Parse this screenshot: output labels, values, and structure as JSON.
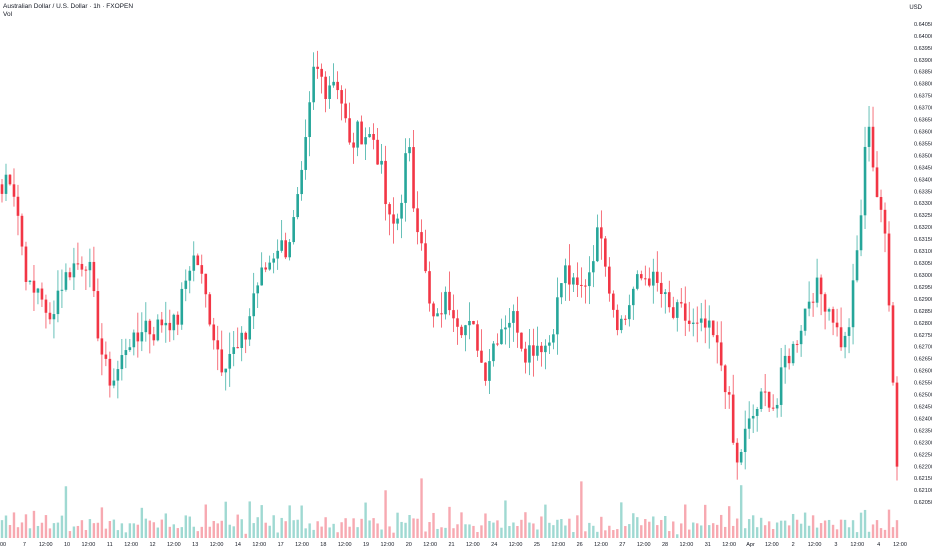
{
  "header": {
    "title": "Australian Dollar / U.S. Dollar · 1h · FXOPEN",
    "volume_label": "Vol"
  },
  "currency_label": "USD",
  "colors": {
    "up": "#26a69a",
    "down": "#f23645",
    "up_vol": "#9fd9d2",
    "down_vol": "#f7a9b1",
    "wick": "#f6b7bd",
    "axis_text": "#131722"
  },
  "chart_data": {
    "type": "candlestick",
    "title": "Australian Dollar / U.S. Dollar · 1h · FXOPEN",
    "ylabel": "USD",
    "ylim": [
      0.619,
      0.6415
    ],
    "y_ticks": [
      "0.64050",
      "0.64000",
      "0.63950",
      "0.63900",
      "0.63850",
      "0.63800",
      "0.63750",
      "0.63700",
      "0.63650",
      "0.63600",
      "0.63550",
      "0.63500",
      "0.63450",
      "0.63400",
      "0.63350",
      "0.63300",
      "0.63250",
      "0.63200",
      "0.63150",
      "0.63100",
      "0.63050",
      "0.63000",
      "0.62950",
      "0.62900",
      "0.62850",
      "0.62800",
      "0.62750",
      "0.62700",
      "0.62650",
      "0.62600",
      "0.62550",
      "0.62500",
      "0.62450",
      "0.62400",
      "0.62350",
      "0.62300",
      "0.62250",
      "0.62200",
      "0.62150",
      "0.62100",
      "0.62050"
    ],
    "x_ticks": [
      "00",
      "7",
      "12:00",
      "10",
      "12:00",
      "11",
      "12:00",
      "12",
      "12:00",
      "13",
      "12:00",
      "14",
      "12:00",
      "17",
      "12:00",
      "18",
      "12:00",
      "19",
      "12:00",
      "20",
      "12:00",
      "21",
      "12:00",
      "24",
      "12:00",
      "25",
      "12:00",
      "26",
      "12:00",
      "27",
      "12:00",
      "28",
      "12:00",
      "31",
      "12:00",
      "Apr",
      "12:00",
      "2",
      "12:00",
      "3",
      "12:00",
      "4",
      "12:00"
    ],
    "close_path": [
      [
        0,
        0.6334
      ],
      [
        6,
        0.6345
      ],
      [
        14,
        0.6332
      ],
      [
        22,
        0.6305
      ],
      [
        30,
        0.629
      ],
      [
        38,
        0.6297
      ],
      [
        46,
        0.6276
      ],
      [
        54,
        0.6292
      ],
      [
        62,
        0.6298
      ],
      [
        70,
        0.6304
      ],
      [
        78,
        0.6305
      ],
      [
        86,
        0.6307
      ],
      [
        94,
        0.6282
      ],
      [
        102,
        0.6262
      ],
      [
        110,
        0.6255
      ],
      [
        118,
        0.6262
      ],
      [
        126,
        0.6274
      ],
      [
        134,
        0.627
      ],
      [
        142,
        0.6282
      ],
      [
        150,
        0.6275
      ],
      [
        158,
        0.628
      ],
      [
        166,
        0.6282
      ],
      [
        174,
        0.6278
      ],
      [
        182,
        0.6295
      ],
      [
        190,
        0.6308
      ],
      [
        196,
        0.6305
      ],
      [
        204,
        0.629
      ],
      [
        212,
        0.6275
      ],
      [
        220,
        0.6263
      ],
      [
        228,
        0.6268
      ],
      [
        236,
        0.6268
      ],
      [
        244,
        0.6275
      ],
      [
        252,
        0.6293
      ],
      [
        260,
        0.63
      ],
      [
        268,
        0.6306
      ],
      [
        276,
        0.6313
      ],
      [
        284,
        0.6311
      ],
      [
        292,
        0.6322
      ],
      [
        300,
        0.634
      ],
      [
        306,
        0.6362
      ],
      [
        312,
        0.6386
      ],
      [
        318,
        0.6384
      ],
      [
        324,
        0.6378
      ],
      [
        330,
        0.6383
      ],
      [
        336,
        0.638
      ],
      [
        342,
        0.6368
      ],
      [
        348,
        0.6352
      ],
      [
        356,
        0.636
      ],
      [
        364,
        0.6359
      ],
      [
        372,
        0.6357
      ],
      [
        380,
        0.6342
      ],
      [
        386,
        0.6322
      ],
      [
        394,
        0.632
      ],
      [
        400,
        0.6335
      ],
      [
        406,
        0.6357
      ],
      [
        412,
        0.6328
      ],
      [
        420,
        0.6316
      ],
      [
        426,
        0.6288
      ],
      [
        434,
        0.6278
      ],
      [
        442,
        0.629
      ],
      [
        450,
        0.6288
      ],
      [
        458,
        0.628
      ],
      [
        466,
        0.6278
      ],
      [
        474,
        0.6275
      ],
      [
        482,
        0.6258
      ],
      [
        490,
        0.627
      ],
      [
        498,
        0.6278
      ],
      [
        506,
        0.6282
      ],
      [
        514,
        0.6282
      ],
      [
        522,
        0.6268
      ],
      [
        530,
        0.627
      ],
      [
        538,
        0.6272
      ],
      [
        546,
        0.627
      ],
      [
        554,
        0.6285
      ],
      [
        562,
        0.6303
      ],
      [
        570,
        0.6295
      ],
      [
        578,
        0.6293
      ],
      [
        586,
        0.63
      ],
      [
        594,
        0.6315
      ],
      [
        600,
        0.632
      ],
      [
        606,
        0.6298
      ],
      [
        614,
        0.6282
      ],
      [
        622,
        0.628
      ],
      [
        630,
        0.6293
      ],
      [
        638,
        0.6298
      ],
      [
        646,
        0.63
      ],
      [
        654,
        0.6296
      ],
      [
        662,
        0.629
      ],
      [
        670,
        0.6282
      ],
      [
        678,
        0.6285
      ],
      [
        686,
        0.628
      ],
      [
        694,
        0.6277
      ],
      [
        702,
        0.6278
      ],
      [
        710,
        0.6275
      ],
      [
        718,
        0.6265
      ],
      [
        726,
        0.625
      ],
      [
        734,
        0.6218
      ],
      [
        742,
        0.6232
      ],
      [
        750,
        0.624
      ],
      [
        758,
        0.6247
      ],
      [
        766,
        0.625
      ],
      [
        774,
        0.6243
      ],
      [
        782,
        0.6264
      ],
      [
        790,
        0.6268
      ],
      [
        798,
        0.6278
      ],
      [
        806,
        0.629
      ],
      [
        814,
        0.6295
      ],
      [
        822,
        0.629
      ],
      [
        830,
        0.6285
      ],
      [
        836,
        0.6275
      ],
      [
        842,
        0.627
      ],
      [
        848,
        0.6282
      ],
      [
        854,
        0.6305
      ],
      [
        860,
        0.633
      ],
      [
        866,
        0.637
      ],
      [
        872,
        0.6342
      ],
      [
        878,
        0.6325
      ],
      [
        884,
        0.6315
      ],
      [
        890,
        0.6268
      ],
      [
        895,
        0.622
      ]
    ],
    "bars": 225,
    "volume_profile": [
      0.12,
      0.18,
      0.1,
      0.25,
      0.08,
      0.15,
      0.3,
      0.12,
      0.2,
      0.06,
      0.14,
      0.35,
      0.1,
      0.16,
      0.08,
      0.22,
      0.45,
      0.12,
      0.1,
      0.2,
      0.15,
      0.08,
      0.28,
      0.12,
      0.18,
      0.6,
      0.1,
      0.14,
      0.22,
      0.08,
      0.16,
      0.12,
      0.24,
      0.1,
      0.18,
      0.32,
      0.14,
      0.08,
      0.2,
      0.12
    ]
  }
}
